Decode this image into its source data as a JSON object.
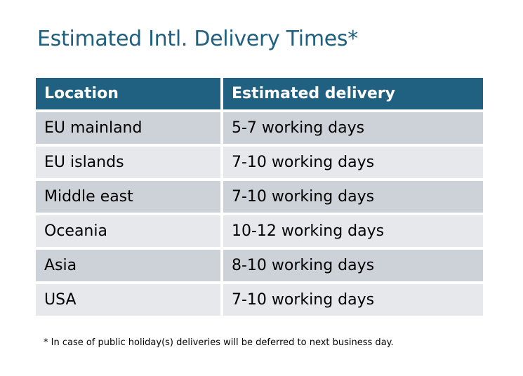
{
  "title": "Estimated Intl. Delivery Times*",
  "table": {
    "headers": [
      "Location",
      "Estimated delivery"
    ],
    "rows": [
      [
        "EU mainland",
        "5-7 working days"
      ],
      [
        "EU islands",
        "7-10 working days"
      ],
      [
        "Middle east",
        "7-10 working days"
      ],
      [
        "Oceania",
        "10-12 working days"
      ],
      [
        "Asia",
        "8-10 working days"
      ],
      [
        "USA",
        "7-10 working days"
      ]
    ]
  },
  "footnote": "* In case of public holiday(s) deliveries will be deferred to next business day.",
  "colors": {
    "accent": "#206080",
    "row_dark": "#cdd1d8",
    "row_light": "#e6e8eb"
  }
}
